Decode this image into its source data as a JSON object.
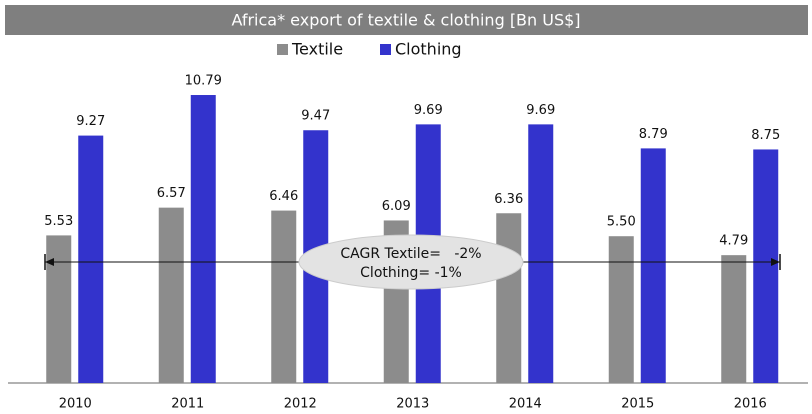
{
  "chart_data": {
    "type": "bar",
    "title": "Africa* export of textile & clothing [Bn US$]",
    "categories": [
      "2010",
      "2011",
      "2012",
      "2013",
      "2014",
      "2015",
      "2016"
    ],
    "series": [
      {
        "name": "Textile",
        "color": "#8c8c8c",
        "values": [
          5.53,
          6.57,
          6.46,
          6.09,
          6.36,
          5.5,
          4.79
        ],
        "value_labels": [
          "5.53",
          "6.57",
          "6.46",
          "6.09",
          "6.36",
          "5.50",
          "4.79"
        ]
      },
      {
        "name": "Clothing",
        "color": "#3333cc",
        "values": [
          9.27,
          10.79,
          9.47,
          9.69,
          9.69,
          8.79,
          8.75
        ],
        "value_labels": [
          "9.27",
          "10.79",
          "9.47",
          "9.69",
          "9.69",
          "8.79",
          "8.75"
        ]
      }
    ],
    "annotations": [
      "CAGR Textile=   -2%",
      "Clothing= -1%"
    ],
    "ylim": [
      0,
      12
    ]
  }
}
